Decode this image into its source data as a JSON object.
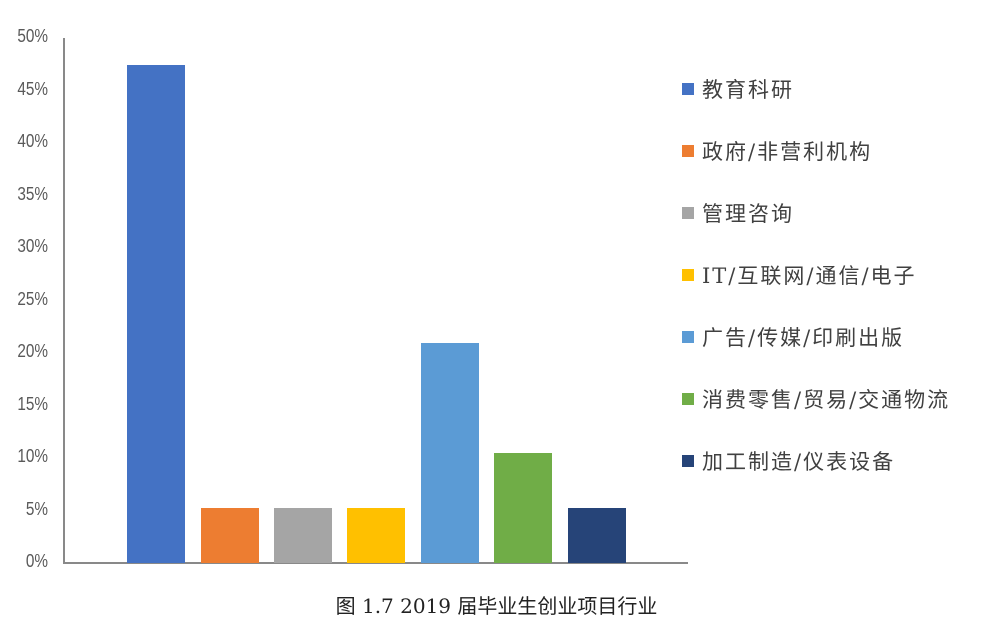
{
  "chart_data": {
    "type": "bar",
    "title": "图 1.7   2019 届毕业生创业项目行业",
    "xlabel": "",
    "ylabel": "",
    "ylim": [
      0,
      50
    ],
    "yticks": [
      "0%",
      "5%",
      "10%",
      "15%",
      "20%",
      "25%",
      "30%",
      "35%",
      "40%",
      "45%",
      "50%"
    ],
    "grid": false,
    "legend_position": "right",
    "categories": [
      "教育科研",
      "政府/非营利机构",
      "管理咨询",
      "IT/互联网/通信/电子",
      "广告/传媒/印刷出版",
      "消费零售/贸易/交通物流",
      "加工制造/仪表设备"
    ],
    "values": [
      47.4,
      5.2,
      5.2,
      5.2,
      21.0,
      10.5,
      5.2
    ],
    "colors": [
      "#4472C4",
      "#ED7D31",
      "#A5A5A5",
      "#FFC000",
      "#5B9BD5",
      "#70AD47",
      "#264478"
    ]
  },
  "caption": "图 1.7   2019 届毕业生创业项目行业"
}
